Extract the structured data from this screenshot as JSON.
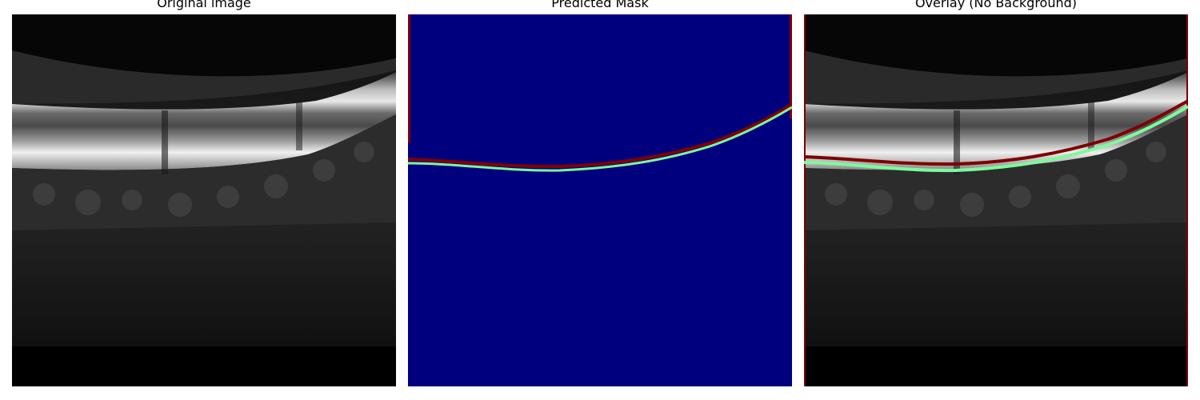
{
  "panels": [
    {
      "title": "Original image"
    },
    {
      "title": "Predicted Mask"
    },
    {
      "title": "Overlay (No Background)"
    }
  ],
  "colors": {
    "mask_background": "#00007f",
    "boundary_upper": "#7f0000",
    "boundary_lower": "#7dfa9b",
    "scan_background": "#000000"
  }
}
